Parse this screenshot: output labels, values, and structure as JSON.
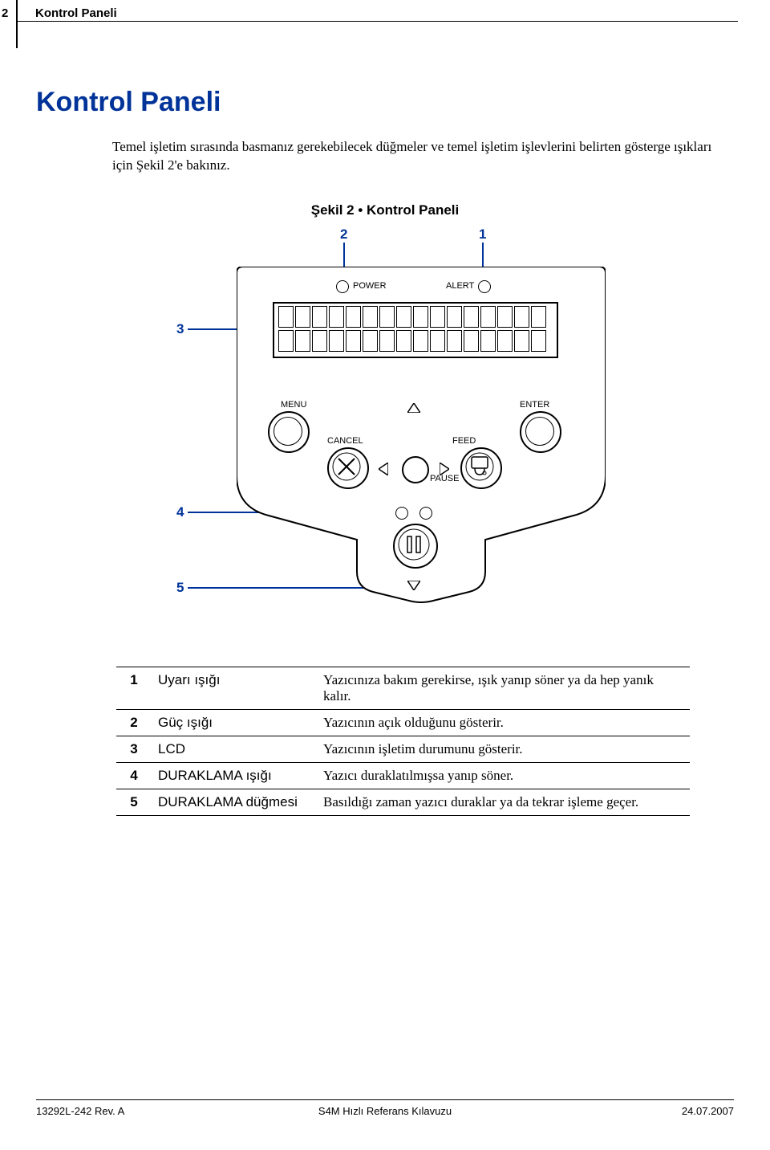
{
  "page": {
    "number": "2",
    "section_label": "Kontrol Paneli"
  },
  "heading": "Kontrol Paneli",
  "intro": "Temel işletim sırasında basmanız gerekebilecek düğmeler ve temel işletim işlevlerini belirten gösterge ışıkları için Şekil 2'e bakınız.",
  "figure": {
    "caption": "Şekil 2 • Kontrol Paneli",
    "callouts": {
      "1": "1",
      "2": "2",
      "3": "3",
      "4": "4",
      "5": "5"
    },
    "labels": {
      "power": "POWER",
      "alert": "ALERT",
      "menu": "MENU",
      "enter": "ENTER",
      "cancel": "CANCEL",
      "feed": "FEED",
      "pause": "PAUSE"
    },
    "colors": {
      "callout": "#003399",
      "outline": "#000000",
      "background": "#ffffff"
    }
  },
  "legend": {
    "rows": [
      {
        "n": "1",
        "term": "Uyarı ışığı",
        "desc": "Yazıcınıza bakım gerekirse, ışık yanıp söner ya da hep yanık kalır."
      },
      {
        "n": "2",
        "term": "Güç ışığı",
        "desc": "Yazıcının açık olduğunu gösterir."
      },
      {
        "n": "3",
        "term": "LCD",
        "desc": "Yazıcının işletim durumunu gösterir."
      },
      {
        "n": "4",
        "term": "DURAKLAMA ışığı",
        "desc": "Yazıcı duraklatılmışsa yanıp söner."
      },
      {
        "n": "5",
        "term": "DURAKLAMA düğmesi",
        "desc": "Basıldığı zaman yazıcı duraklar ya da tekrar işleme geçer."
      }
    ]
  },
  "footer": {
    "left": "13292L-242 Rev. A",
    "center": "S4M Hızlı Referans Kılavuzu",
    "right": "24.07.2007"
  }
}
